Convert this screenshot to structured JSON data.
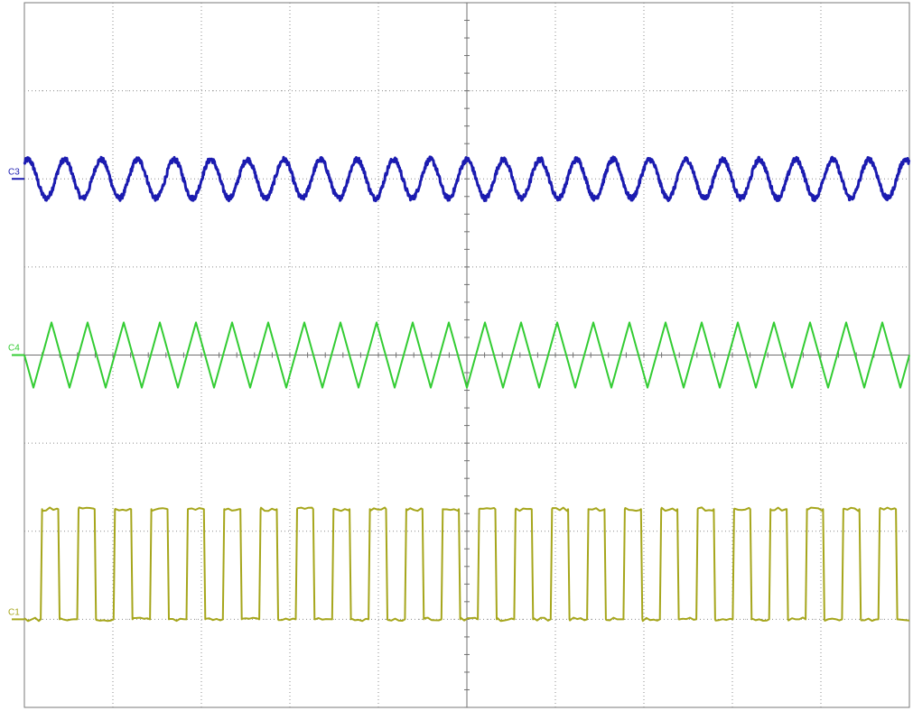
{
  "chart_data": {
    "type": "line",
    "title": "",
    "grid": true,
    "graticule": {
      "h_divisions": 10,
      "v_divisions": 8,
      "minor_ticks_per_division": 5
    },
    "x_range_divisions": [
      0,
      10
    ],
    "y_range_divisions": [
      -4,
      4
    ],
    "series": [
      {
        "name": "C3",
        "waveform": "sine",
        "color": "#1b1bb0",
        "reference_level_div": 2.0,
        "amplitude_div": 0.22,
        "cycles_on_screen": 24.2,
        "phase": 0.15,
        "noise_div": 0.03
      },
      {
        "name": "C4",
        "waveform": "triangle",
        "color": "#33cc33",
        "reference_level_div": 0.0,
        "amplitude_div": 0.37,
        "cycles_on_screen": 24.5,
        "phase": 0.75,
        "noise_div": 0.0
      },
      {
        "name": "C1",
        "waveform": "square",
        "color": "#a6a61c",
        "reference_level_div": -3.0,
        "low_div": 0.0,
        "high_div": 1.25,
        "cycles_on_screen": 24.3,
        "phase": 0.07,
        "duty_cycle": 0.48,
        "noise_div": 0.02
      }
    ]
  }
}
